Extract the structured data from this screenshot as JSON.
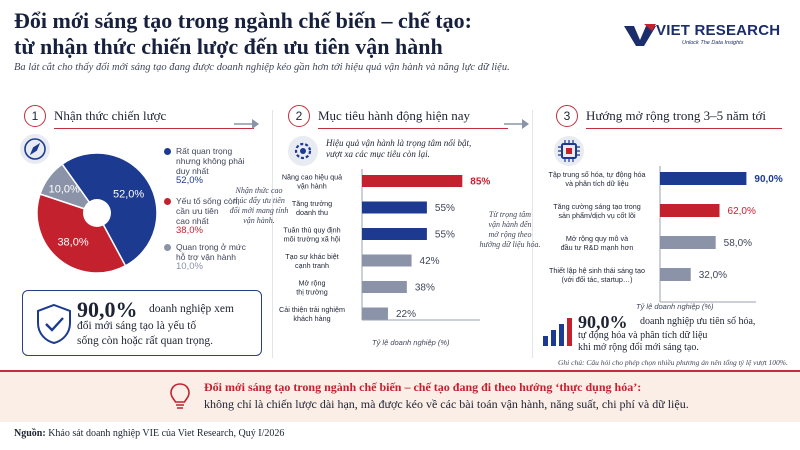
{
  "header": {
    "title_line1": "Đổi mới sáng tạo trong ngành chế biến – chế tạo:",
    "title_line2": "từ nhận thức chiến lược đến ưu tiên vận hành",
    "subtitle": "Ba lát cắt cho thấy đổi mới sáng tạo đang được doanh nghiệp kéo gần hơn tới hiệu quả vận hành và năng lực dữ liệu.",
    "logo_name": "VIET RESEARCH",
    "logo_tagline": "Unlock The Data Insights"
  },
  "colors": {
    "blue": "#1c3a8f",
    "red": "#c4212f",
    "gray": "#8a93a8",
    "accent": "#c0303a"
  },
  "section1": {
    "number": "1",
    "title": "Nhận thức chiến lược",
    "icon": "compass-icon",
    "legend": [
      {
        "label_lines": [
          "Rất quan trọng",
          "nhưng không phải",
          "duy nhất"
        ],
        "pct": "52,0%",
        "color": "#1c3a8f"
      },
      {
        "label_lines": [
          "Yếu tố sống còn,",
          "cần ưu tiên",
          "cao nhất"
        ],
        "pct": "38,0%",
        "color": "#c4212f"
      },
      {
        "label_lines": [
          "Quan trọng ở mức",
          "hỗ trợ vận hành"
        ],
        "pct": "10,0%",
        "color": "#8a93a8"
      }
    ],
    "kpi_value": "90,0%",
    "kpi_text_lines": [
      "doanh nghiệp xem",
      "đổi mới sáng tạo là yếu tố",
      "sống còn hoặc rất quan trọng."
    ],
    "kpi_icon": "shield-check-icon"
  },
  "note1_lines": [
    "Nhận thức cao",
    "thúc đẩy ưu tiên",
    "đổi mới mang tính",
    "vận hành."
  ],
  "section2": {
    "number": "2",
    "title": "Mục tiêu hành động hiện nay",
    "icon": "gear-icon",
    "callout_lines": [
      "Hiệu quả vận hành là trọng tâm nổi bật,",
      "vượt xa các mục tiêu còn lại."
    ],
    "xlabel": "Tỷ lệ doanh nghiệp (%)"
  },
  "note2_lines": [
    "Từ trọng tâm",
    "vận hành đến",
    "mở rộng theo",
    "hướng dữ liệu hóa."
  ],
  "section3": {
    "number": "3",
    "title": "Hướng mở rộng trong 3–5 năm tới",
    "icon": "chip-icon",
    "xlabel": "Tỷ lệ doanh nghiệp (%)",
    "kpi_value": "90,0%",
    "kpi_text_lines": [
      "doanh nghiệp ưu tiên số hóa,",
      "tự động hóa và phân tích dữ liệu",
      "khi mở rộng đổi mới sáng tạo."
    ],
    "kpi_icon": "bar-chart-icon",
    "footnote": "Ghi chú: Câu hỏi cho phép chọn nhiều phương án nên tổng tỷ lệ vượt 100%."
  },
  "banner": {
    "icon": "lightbulb-icon",
    "line1": "Đổi mới sáng tạo trong ngành chế biến – chế tạo đang đi theo hướng ‘thực dụng hóa’:",
    "line2": "không chỉ là chiến lược dài hạn, mà được kéo về các bài toán vận hành, năng suất, chi phí và dữ liệu."
  },
  "source": {
    "label": "Nguồn:",
    "text": " Khảo sát doanh nghiệp VIE của Viet Research, Quý I/2026"
  },
  "chart_data": [
    {
      "type": "pie",
      "title": "Nhận thức chiến lược",
      "categories": [
        "Rất quan trọng nhưng không phải duy nhất",
        "Yếu tố sống còn, cần ưu tiên cao nhất",
        "Quan trọng ở mức hỗ trợ vận hành"
      ],
      "values": [
        52.0,
        38.0,
        10.0
      ],
      "labels": [
        "52,0%",
        "38,0%",
        "10,0%"
      ],
      "colors": [
        "#1c3a8f",
        "#c4212f",
        "#8a93a8"
      ]
    },
    {
      "type": "bar",
      "orientation": "horizontal",
      "title": "Mục tiêu hành động hiện nay",
      "categories": [
        [
          "Nâng cao hiệu quả",
          "vận hành"
        ],
        [
          "Tăng trưởng",
          "doanh thu"
        ],
        [
          "Tuân thủ quy định",
          "môi trường xã hội"
        ],
        [
          "Tạo sự khác biệt",
          "cạnh tranh"
        ],
        [
          "Mở rộng",
          "thị trường"
        ],
        [
          "Cải thiện trải nghiệm",
          "khách hàng"
        ]
      ],
      "values": [
        85,
        55,
        55,
        42,
        38,
        22
      ],
      "labels": [
        "85%",
        "55%",
        "55%",
        "42%",
        "38%",
        "22%"
      ],
      "colors": [
        "#c4212f",
        "#1c3a8f",
        "#1c3a8f",
        "#8a93a8",
        "#8a93a8",
        "#8a93a8"
      ],
      "xlabel": "Tỷ lệ doanh nghiệp (%)",
      "xlim": [
        0,
        100
      ]
    },
    {
      "type": "bar",
      "orientation": "horizontal",
      "title": "Hướng mở rộng trong 3–5 năm tới",
      "categories": [
        [
          "Tập trung số hóa, tự động hóa",
          "và phân tích dữ liệu"
        ],
        [
          "Tăng cường sáng tạo trong",
          "sản phẩm/dịch vụ cốt lõi"
        ],
        [
          "Mở rộng quy mô và",
          "đầu tư R&D mạnh hơn"
        ],
        [
          "Thiết lập hệ sinh thái sáng tạo",
          "(với đối tác, startup…)"
        ]
      ],
      "values": [
        90.0,
        62.0,
        58.0,
        32.0
      ],
      "labels": [
        "90,0%",
        "62,0%",
        "58,0%",
        "32,0%"
      ],
      "colors": [
        "#1c3a8f",
        "#c4212f",
        "#8a93a8",
        "#8a93a8"
      ],
      "xlabel": "Tỷ lệ doanh nghiệp (%)",
      "xlim": [
        0,
        100
      ]
    }
  ]
}
